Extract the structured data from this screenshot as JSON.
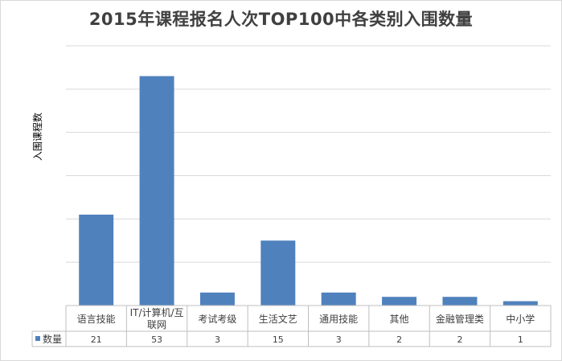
{
  "chart_data": {
    "type": "bar",
    "title": "2015年课程报名人次TOP100中各类别入围数量",
    "ylabel": "入围课程数",
    "xlabel": "",
    "categories": [
      "语言技能",
      "IT/计算机/互联网",
      "考试考级",
      "生活文艺",
      "通用技能",
      "其他",
      "金融管理类",
      "中小学"
    ],
    "category_lines": [
      [
        "语言技能"
      ],
      [
        "IT/计算机/互",
        "联网"
      ],
      [
        "考试考级"
      ],
      [
        "生活文艺"
      ],
      [
        "通用技能"
      ],
      [
        "其他"
      ],
      [
        "金融管理类"
      ],
      [
        "中小学"
      ]
    ],
    "series": [
      {
        "name": "数量",
        "values": [
          21,
          53,
          3,
          15,
          3,
          2,
          2,
          1
        ],
        "color": "#4f81bd"
      }
    ],
    "ylim": [
      0,
      60
    ],
    "grid": true,
    "legend": "data-table",
    "data_table": true
  }
}
